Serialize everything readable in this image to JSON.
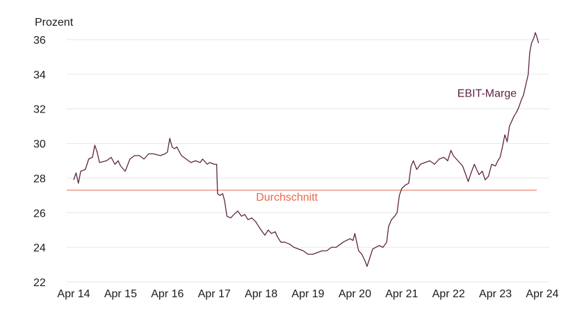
{
  "chart_data": {
    "type": "line",
    "ylabel": "Prozent",
    "ylim": [
      22,
      36
    ],
    "yticks": [
      22,
      24,
      26,
      28,
      30,
      32,
      34,
      36
    ],
    "xlim": [
      2014,
      2024
    ],
    "xticks": [
      {
        "x": 2014,
        "label": "Apr 14"
      },
      {
        "x": 2015,
        "label": "Apr 15"
      },
      {
        "x": 2016,
        "label": "Apr 16"
      },
      {
        "x": 2017,
        "label": "Apr 17"
      },
      {
        "x": 2018,
        "label": "Apr 18"
      },
      {
        "x": 2019,
        "label": "Apr 19"
      },
      {
        "x": 2020,
        "label": "Apr 20"
      },
      {
        "x": 2021,
        "label": "Apr 21"
      },
      {
        "x": 2022,
        "label": "Apr 22"
      },
      {
        "x": 2023,
        "label": "Apr 23"
      },
      {
        "x": 2024,
        "label": "Apr 24"
      }
    ],
    "grid": true,
    "series": [
      {
        "name": "EBIT-Marge",
        "color": "#5e2344",
        "points": [
          [
            2014.0,
            27.9
          ],
          [
            2014.05,
            28.3
          ],
          [
            2014.1,
            27.7
          ],
          [
            2014.15,
            28.4
          ],
          [
            2014.25,
            28.5
          ],
          [
            2014.32,
            29.1
          ],
          [
            2014.4,
            29.2
          ],
          [
            2014.45,
            29.9
          ],
          [
            2014.5,
            29.5
          ],
          [
            2014.55,
            28.9
          ],
          [
            2014.7,
            29.0
          ],
          [
            2014.8,
            29.2
          ],
          [
            2014.88,
            28.8
          ],
          [
            2014.95,
            29.0
          ],
          [
            2015.0,
            28.7
          ],
          [
            2015.1,
            28.4
          ],
          [
            2015.2,
            29.1
          ],
          [
            2015.3,
            29.3
          ],
          [
            2015.4,
            29.3
          ],
          [
            2015.5,
            29.1
          ],
          [
            2015.6,
            29.4
          ],
          [
            2015.7,
            29.4
          ],
          [
            2015.85,
            29.3
          ],
          [
            2015.95,
            29.4
          ],
          [
            2016.0,
            29.5
          ],
          [
            2016.05,
            30.3
          ],
          [
            2016.1,
            29.8
          ],
          [
            2016.15,
            29.7
          ],
          [
            2016.2,
            29.8
          ],
          [
            2016.3,
            29.3
          ],
          [
            2016.4,
            29.1
          ],
          [
            2016.5,
            28.9
          ],
          [
            2016.6,
            29.0
          ],
          [
            2016.7,
            28.9
          ],
          [
            2016.75,
            29.1
          ],
          [
            2016.85,
            28.8
          ],
          [
            2016.9,
            28.9
          ],
          [
            2017.0,
            28.8
          ],
          [
            2017.05,
            28.8
          ],
          [
            2017.07,
            27.1
          ],
          [
            2017.12,
            27.0
          ],
          [
            2017.18,
            27.1
          ],
          [
            2017.22,
            26.7
          ],
          [
            2017.27,
            25.8
          ],
          [
            2017.35,
            25.7
          ],
          [
            2017.42,
            25.9
          ],
          [
            2017.5,
            26.1
          ],
          [
            2017.58,
            25.8
          ],
          [
            2017.65,
            25.9
          ],
          [
            2017.72,
            25.6
          ],
          [
            2017.8,
            25.7
          ],
          [
            2017.88,
            25.5
          ],
          [
            2017.95,
            25.2
          ],
          [
            2018.0,
            25.0
          ],
          [
            2018.08,
            24.7
          ],
          [
            2018.15,
            25.0
          ],
          [
            2018.22,
            24.8
          ],
          [
            2018.3,
            24.9
          ],
          [
            2018.35,
            24.6
          ],
          [
            2018.42,
            24.3
          ],
          [
            2018.5,
            24.3
          ],
          [
            2018.6,
            24.2
          ],
          [
            2018.7,
            24.0
          ],
          [
            2018.8,
            23.9
          ],
          [
            2018.9,
            23.8
          ],
          [
            2019.0,
            23.6
          ],
          [
            2019.1,
            23.6
          ],
          [
            2019.2,
            23.7
          ],
          [
            2019.3,
            23.8
          ],
          [
            2019.4,
            23.8
          ],
          [
            2019.5,
            24.0
          ],
          [
            2019.6,
            24.0
          ],
          [
            2019.7,
            24.2
          ],
          [
            2019.75,
            24.3
          ],
          [
            2019.82,
            24.4
          ],
          [
            2019.9,
            24.5
          ],
          [
            2019.96,
            24.4
          ],
          [
            2020.0,
            24.8
          ],
          [
            2020.04,
            24.3
          ],
          [
            2020.08,
            23.8
          ],
          [
            2020.15,
            23.6
          ],
          [
            2020.22,
            23.2
          ],
          [
            2020.26,
            22.9
          ],
          [
            2020.32,
            23.4
          ],
          [
            2020.38,
            23.9
          ],
          [
            2020.45,
            24.0
          ],
          [
            2020.52,
            24.1
          ],
          [
            2020.6,
            24.0
          ],
          [
            2020.68,
            24.3
          ],
          [
            2020.72,
            25.2
          ],
          [
            2020.78,
            25.6
          ],
          [
            2020.85,
            25.8
          ],
          [
            2020.9,
            26.0
          ],
          [
            2020.95,
            27.0
          ],
          [
            2021.0,
            27.4
          ],
          [
            2021.08,
            27.6
          ],
          [
            2021.15,
            27.7
          ],
          [
            2021.2,
            28.7
          ],
          [
            2021.25,
            29.0
          ],
          [
            2021.32,
            28.5
          ],
          [
            2021.4,
            28.8
          ],
          [
            2021.5,
            28.9
          ],
          [
            2021.6,
            29.0
          ],
          [
            2021.7,
            28.8
          ],
          [
            2021.8,
            29.1
          ],
          [
            2021.9,
            29.2
          ],
          [
            2021.98,
            29.0
          ],
          [
            2022.05,
            29.6
          ],
          [
            2022.1,
            29.3
          ],
          [
            2022.2,
            29.0
          ],
          [
            2022.3,
            28.7
          ],
          [
            2022.38,
            28.1
          ],
          [
            2022.42,
            27.8
          ],
          [
            2022.48,
            28.3
          ],
          [
            2022.55,
            28.8
          ],
          [
            2022.6,
            28.5
          ],
          [
            2022.65,
            28.2
          ],
          [
            2022.72,
            28.4
          ],
          [
            2022.78,
            27.9
          ],
          [
            2022.85,
            28.1
          ],
          [
            2022.92,
            28.8
          ],
          [
            2023.0,
            28.7
          ],
          [
            2023.05,
            29.0
          ],
          [
            2023.1,
            29.2
          ],
          [
            2023.15,
            29.8
          ],
          [
            2023.2,
            30.5
          ],
          [
            2023.25,
            30.1
          ],
          [
            2023.3,
            31.0
          ],
          [
            2023.35,
            31.3
          ],
          [
            2023.4,
            31.6
          ],
          [
            2023.45,
            31.8
          ],
          [
            2023.5,
            32.1
          ],
          [
            2023.55,
            32.5
          ],
          [
            2023.6,
            32.8
          ],
          [
            2023.65,
            33.4
          ],
          [
            2023.7,
            34.0
          ],
          [
            2023.73,
            35.2
          ],
          [
            2023.77,
            35.8
          ],
          [
            2023.82,
            36.1
          ],
          [
            2023.85,
            36.4
          ],
          [
            2023.88,
            36.2
          ],
          [
            2023.92,
            35.8
          ]
        ]
      }
    ],
    "average": {
      "label": "Durchschnitt",
      "value": 27.3,
      "color": "#e8694a"
    },
    "annotations": [
      {
        "text": "EBIT-Marge",
        "x": 2022.82,
        "y": 32.7
      },
      {
        "text": "Durchschnitt",
        "x": 2018.55,
        "y": 26.7
      }
    ]
  }
}
